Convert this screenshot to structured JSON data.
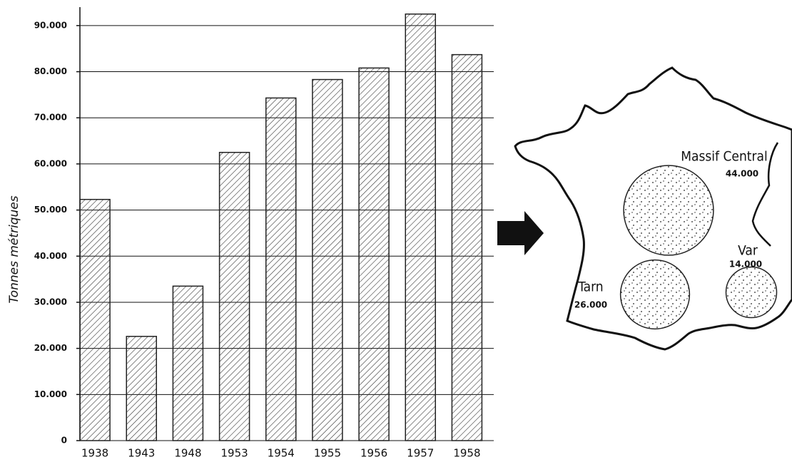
{
  "chart_data": [
    {
      "type": "bar",
      "y_label": "Tonnes métriques",
      "categories": [
        "1938",
        "1943",
        "1948",
        "1953",
        "1954",
        "1955",
        "1956",
        "1957",
        "1958"
      ],
      "values": [
        52300,
        22600,
        33500,
        62500,
        74300,
        78300,
        80800,
        92500,
        83700
      ],
      "color": "#222222",
      "ylim": [
        0,
        94000
      ],
      "yticks": [
        0,
        {
          "value": 10000,
          "label": "10.000"
        },
        {
          "value": 20000,
          "label": "20.000"
        },
        {
          "value": 30000,
          "label": "30.000"
        },
        {
          "value": 40000,
          "label": "40.000"
        },
        {
          "value": 50000,
          "label": "50.000"
        },
        {
          "value": 60000,
          "label": "60.000"
        },
        {
          "value": 70000,
          "label": "70.000"
        },
        {
          "value": 80000,
          "label": "80.000"
        },
        {
          "value": 90000,
          "label": "90.000"
        }
      ],
      "grid": true
    },
    {
      "type": "bubble",
      "categories": [
        "Massif Central",
        "Tarn",
        "Var"
      ],
      "values": [
        44000,
        26000,
        14000
      ],
      "value_labels": [
        "44.000",
        "26.000",
        "14.000"
      ],
      "color": "#222222"
    }
  ]
}
